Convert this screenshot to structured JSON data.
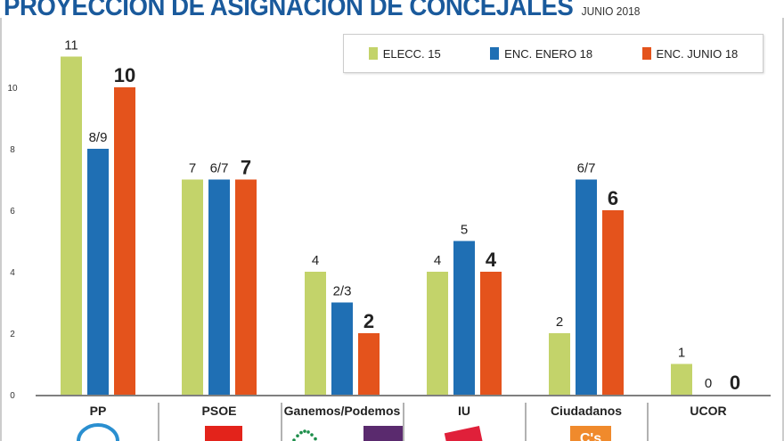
{
  "title": "PROYECCION DE ASIGNACION DE CONCEJALES",
  "subtitle": "JUNIO 2018",
  "chart_data": {
    "type": "bar",
    "title": "PROYECCION DE ASIGNACION DE CONCEJALES",
    "subtitle": "JUNIO 2018",
    "categories": [
      "PP",
      "PSOE",
      "Ganemos/Podemos",
      "IU",
      "Ciudadanos",
      "UCOR"
    ],
    "yticks": [
      0,
      2,
      4,
      6,
      8,
      10
    ],
    "ylim": [
      0,
      11
    ],
    "grid": false,
    "legend_position": "top-right",
    "series": [
      {
        "name": "ELECC. 15",
        "color": "#c3d36a",
        "values": [
          11,
          7,
          4,
          4,
          2,
          1
        ],
        "labels": [
          "11",
          "7",
          "4",
          "4",
          "2",
          "1"
        ],
        "bold": false
      },
      {
        "name": "ENC. ENERO 18",
        "color": "#1f6fb4",
        "values": [
          8,
          7,
          3,
          5,
          7,
          0
        ],
        "labels": [
          "8/9",
          "6/7",
          "2/3",
          "5",
          "6/7",
          "0"
        ],
        "bold": false
      },
      {
        "name": "ENC. JUNIO 18",
        "color": "#e4531c",
        "values": [
          10,
          7,
          2,
          4,
          6,
          0
        ],
        "labels": [
          "10",
          "7",
          "2",
          "4",
          "6",
          "0"
        ],
        "bold": true
      }
    ]
  },
  "logos": [
    "pp-logo",
    "psoe-logo",
    "ganemos-logo",
    "podemos-logo",
    "iu-logo",
    "ciudadanos-logo"
  ]
}
